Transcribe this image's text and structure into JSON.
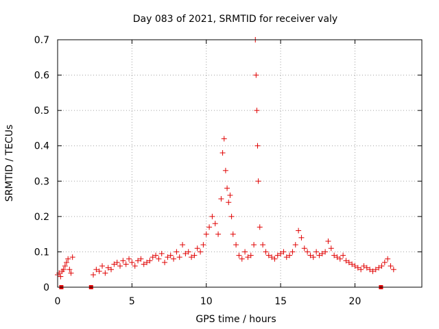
{
  "chart_data": {
    "type": "scatter",
    "title": "Day 083 of 2021, SRMTID for receiver valy",
    "xlabel": "GPS time / hours",
    "ylabel": "SRMTID / TECUs",
    "xlim": [
      0,
      24.5
    ],
    "ylim": [
      0,
      0.7
    ],
    "xticks": [
      0,
      5,
      10,
      15,
      20
    ],
    "xtick_labels": [
      "0",
      "5",
      "10",
      "15",
      "20"
    ],
    "yticks": [
      0,
      0.1,
      0.2,
      0.3,
      0.4,
      0.5,
      0.6,
      0.7
    ],
    "ytick_labels": [
      "0",
      "0.1",
      "0.2",
      "0.3",
      "0.4",
      "0.5",
      "0.6",
      "0.7"
    ],
    "grid": true,
    "marker": "+",
    "color": "#e00000",
    "series": [
      {
        "name": "SRMTID",
        "x": [
          0.0,
          0.1,
          0.2,
          0.3,
          0.4,
          0.5,
          0.6,
          0.7,
          0.8,
          0.9,
          1.0,
          2.4,
          2.6,
          2.8,
          3.0,
          3.2,
          3.4,
          3.6,
          3.8,
          4.0,
          4.2,
          4.4,
          4.6,
          4.8,
          5.0,
          5.2,
          5.4,
          5.6,
          5.8,
          6.0,
          6.2,
          6.4,
          6.6,
          6.8,
          7.0,
          7.2,
          7.4,
          7.6,
          7.8,
          8.0,
          8.2,
          8.4,
          8.6,
          8.8,
          9.0,
          9.2,
          9.4,
          9.6,
          9.8,
          10.0,
          10.2,
          10.4,
          10.6,
          10.8,
          11.0,
          11.1,
          11.2,
          11.3,
          11.4,
          11.5,
          11.6,
          11.7,
          11.8,
          12.0,
          12.2,
          12.4,
          12.6,
          12.8,
          13.0,
          13.2,
          13.3,
          13.35,
          13.4,
          13.45,
          13.5,
          13.6,
          13.8,
          14.0,
          14.2,
          14.4,
          14.6,
          14.8,
          15.0,
          15.2,
          15.4,
          15.6,
          15.8,
          16.0,
          16.2,
          16.4,
          16.6,
          16.8,
          17.0,
          17.2,
          17.4,
          17.6,
          17.8,
          18.0,
          18.2,
          18.4,
          18.6,
          18.8,
          19.0,
          19.2,
          19.4,
          19.6,
          19.8,
          20.0,
          20.2,
          20.4,
          20.6,
          20.8,
          21.0,
          21.2,
          21.4,
          21.6,
          21.8,
          22.0,
          22.2,
          22.4,
          22.6
        ],
        "values": [
          0.035,
          0.04,
          0.03,
          0.045,
          0.05,
          0.06,
          0.07,
          0.08,
          0.05,
          0.04,
          0.085,
          0.035,
          0.05,
          0.045,
          0.06,
          0.04,
          0.055,
          0.05,
          0.065,
          0.07,
          0.06,
          0.075,
          0.065,
          0.08,
          0.07,
          0.06,
          0.075,
          0.08,
          0.065,
          0.07,
          0.075,
          0.085,
          0.09,
          0.08,
          0.095,
          0.07,
          0.085,
          0.09,
          0.08,
          0.1,
          0.085,
          0.12,
          0.095,
          0.1,
          0.085,
          0.09,
          0.11,
          0.1,
          0.12,
          0.15,
          0.17,
          0.2,
          0.18,
          0.15,
          0.25,
          0.38,
          0.42,
          0.33,
          0.28,
          0.24,
          0.26,
          0.2,
          0.15,
          0.12,
          0.09,
          0.08,
          0.1,
          0.085,
          0.09,
          0.12,
          0.7,
          0.6,
          0.5,
          0.4,
          0.3,
          0.17,
          0.12,
          0.1,
          0.09,
          0.085,
          0.08,
          0.09,
          0.095,
          0.1,
          0.085,
          0.09,
          0.1,
          0.12,
          0.16,
          0.14,
          0.11,
          0.1,
          0.09,
          0.085,
          0.1,
          0.09,
          0.095,
          0.1,
          0.13,
          0.11,
          0.09,
          0.085,
          0.08,
          0.09,
          0.075,
          0.07,
          0.065,
          0.06,
          0.055,
          0.05,
          0.06,
          0.055,
          0.05,
          0.045,
          0.05,
          0.055,
          0.06,
          0.07,
          0.08,
          0.06,
          0.05
        ]
      }
    ],
    "baseline_marks_x": [
      0.25,
      2.25,
      21.75
    ]
  }
}
